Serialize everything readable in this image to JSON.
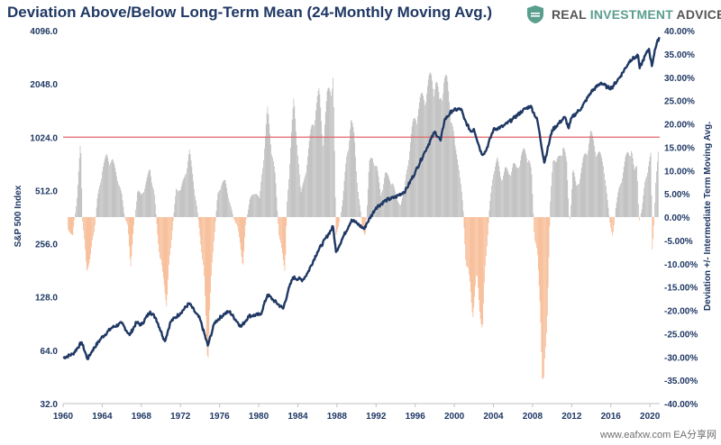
{
  "chart_data": {
    "type": "bar",
    "title": "Deviation Above/Below Long-Term Mean (24-Monthly Moving Avg.)",
    "left_axis": {
      "label": "S&P 500 Index",
      "scale": "log2",
      "ticks": [
        "32.0",
        "64.0",
        "128.0",
        "256.0",
        "512.0",
        "1024.0",
        "2048.0",
        "4096.0"
      ],
      "tick_values": [
        32,
        64,
        128,
        256,
        512,
        1024,
        2048,
        4096
      ],
      "range": [
        32,
        4096
      ]
    },
    "right_axis": {
      "label": "Deviation +/- Intermediate Term Moving Avg.",
      "ticks": [
        "-40.00%",
        "-35.00%",
        "-30.00%",
        "-25.00%",
        "-20.00%",
        "-15.00%",
        "-10.00%",
        "-5.00%",
        "0.00%",
        "5.00%",
        "10.00%",
        "15.00%",
        "20.00%",
        "25.00%",
        "30.00%",
        "35.00%",
        "40.00%"
      ],
      "tick_values": [
        -40,
        -35,
        -30,
        -25,
        -20,
        -15,
        -10,
        -5,
        0,
        5,
        10,
        15,
        20,
        25,
        30,
        35,
        40
      ],
      "range": [
        -40,
        40
      ]
    },
    "x_axis": {
      "ticks": [
        "1960",
        "1964",
        "1968",
        "1972",
        "1976",
        "1980",
        "1984",
        "1988",
        "1992",
        "1996",
        "2000",
        "2004",
        "2008",
        "2012",
        "2016",
        "2020"
      ],
      "tick_values": [
        1960,
        1964,
        1968,
        1972,
        1976,
        1980,
        1984,
        1988,
        1992,
        1996,
        2000,
        2004,
        2008,
        2012,
        2016,
        2020
      ],
      "range": [
        1960,
        2021
      ]
    },
    "threshold_line": {
      "value": 1024,
      "axis": "left",
      "color": "#e06666"
    },
    "series": [
      {
        "type": "line",
        "axis": "left",
        "color": "#1f3864",
        "points": [
          [
            1960.0,
            58
          ],
          [
            1961.0,
            61
          ],
          [
            1961.9,
            71
          ],
          [
            1962.5,
            57
          ],
          [
            1963.0,
            64
          ],
          [
            1963.9,
            75
          ],
          [
            1965.0,
            86
          ],
          [
            1966.0,
            91
          ],
          [
            1966.8,
            78
          ],
          [
            1967.5,
            92
          ],
          [
            1968.0,
            89
          ],
          [
            1968.9,
            106
          ],
          [
            1969.5,
            97
          ],
          [
            1970.4,
            72
          ],
          [
            1971.0,
            93
          ],
          [
            1972.0,
            104
          ],
          [
            1972.9,
            118
          ],
          [
            1973.5,
            105
          ],
          [
            1974.0,
            96
          ],
          [
            1974.8,
            68
          ],
          [
            1975.5,
            92
          ],
          [
            1976.5,
            103
          ],
          [
            1977.0,
            106
          ],
          [
            1978.2,
            87
          ],
          [
            1979.0,
            100
          ],
          [
            1980.2,
            102
          ],
          [
            1980.9,
            132
          ],
          [
            1981.5,
            123
          ],
          [
            1982.5,
            110
          ],
          [
            1983.0,
            138
          ],
          [
            1983.5,
            165
          ],
          [
            1984.5,
            160
          ],
          [
            1985.0,
            175
          ],
          [
            1986.0,
            230
          ],
          [
            1987.6,
            320
          ],
          [
            1987.9,
            230
          ],
          [
            1988.5,
            270
          ],
          [
            1989.5,
            350
          ],
          [
            1990.0,
            335
          ],
          [
            1990.8,
            310
          ],
          [
            1991.0,
            330
          ],
          [
            1992.0,
            410
          ],
          [
            1993.0,
            450
          ],
          [
            1994.0,
            470
          ],
          [
            1995.0,
            510
          ],
          [
            1996.0,
            650
          ],
          [
            1997.0,
            850
          ],
          [
            1998.0,
            1100
          ],
          [
            1998.6,
            980
          ],
          [
            1999.0,
            1280
          ],
          [
            1999.8,
            1450
          ],
          [
            2000.7,
            1480
          ],
          [
            2001.0,
            1300
          ],
          [
            2001.7,
            1100
          ],
          [
            2002.0,
            1140
          ],
          [
            2002.8,
            820
          ],
          [
            2003.2,
            850
          ],
          [
            2004.0,
            1130
          ],
          [
            2005.0,
            1180
          ],
          [
            2006.0,
            1300
          ],
          [
            2007.0,
            1450
          ],
          [
            2007.8,
            1540
          ],
          [
            2008.5,
            1270
          ],
          [
            2009.2,
            735
          ],
          [
            2010.0,
            1120
          ],
          [
            2011.3,
            1330
          ],
          [
            2011.7,
            1150
          ],
          [
            2012.0,
            1320
          ],
          [
            2013.0,
            1500
          ],
          [
            2014.0,
            1850
          ],
          [
            2015.0,
            2080
          ],
          [
            2015.7,
            1950
          ],
          [
            2016.1,
            1950
          ],
          [
            2017.0,
            2270
          ],
          [
            2018.0,
            2800
          ],
          [
            2018.8,
            2950
          ],
          [
            2018.95,
            2510
          ],
          [
            2019.5,
            2950
          ],
          [
            2019.9,
            3230
          ],
          [
            2020.2,
            2580
          ],
          [
            2020.5,
            3200
          ],
          [
            2020.95,
            3760
          ]
        ]
      },
      {
        "type": "bar",
        "axis": "right",
        "positive_color": "#a5a5a5",
        "negative_color": "#f4a16b",
        "points": [
          [
            1960.5,
            -3
          ],
          [
            1961.0,
            -4
          ],
          [
            1961.4,
            4
          ],
          [
            1961.8,
            17
          ],
          [
            1962.0,
            -1
          ],
          [
            1962.4,
            -12
          ],
          [
            1962.8,
            -9
          ],
          [
            1963.2,
            -3
          ],
          [
            1963.5,
            4
          ],
          [
            1964.0,
            11
          ],
          [
            1964.5,
            14
          ],
          [
            1965.0,
            13
          ],
          [
            1965.6,
            9
          ],
          [
            1966.0,
            5
          ],
          [
            1966.3,
            0
          ],
          [
            1966.6,
            -2
          ],
          [
            1966.9,
            -11
          ],
          [
            1967.2,
            -3
          ],
          [
            1967.6,
            6
          ],
          [
            1968.0,
            5
          ],
          [
            1968.5,
            8
          ],
          [
            1968.9,
            11
          ],
          [
            1969.3,
            6
          ],
          [
            1969.6,
            -2
          ],
          [
            1969.9,
            -10
          ],
          [
            1970.3,
            -14
          ],
          [
            1970.6,
            -20
          ],
          [
            1970.9,
            -10
          ],
          [
            1971.2,
            -2
          ],
          [
            1971.6,
            7
          ],
          [
            1972.0,
            6
          ],
          [
            1972.4,
            9
          ],
          [
            1972.9,
            15
          ],
          [
            1973.3,
            9
          ],
          [
            1973.7,
            2
          ],
          [
            1974.0,
            -4
          ],
          [
            1974.4,
            -14
          ],
          [
            1974.8,
            -32
          ],
          [
            1975.0,
            -21
          ],
          [
            1975.4,
            -6
          ],
          [
            1975.8,
            5
          ],
          [
            1976.2,
            8
          ],
          [
            1976.6,
            8
          ],
          [
            1977.0,
            4
          ],
          [
            1977.4,
            0
          ],
          [
            1977.8,
            -2
          ],
          [
            1978.1,
            -6
          ],
          [
            1978.4,
            -11
          ],
          [
            1978.7,
            -1
          ],
          [
            1979.1,
            4
          ],
          [
            1979.6,
            6
          ],
          [
            1980.1,
            4
          ],
          [
            1980.4,
            12
          ],
          [
            1980.9,
            24
          ],
          [
            1981.3,
            17
          ],
          [
            1981.7,
            9
          ],
          [
            1982.1,
            -5
          ],
          [
            1982.4,
            -8
          ],
          [
            1982.7,
            -12
          ],
          [
            1982.9,
            3
          ],
          [
            1983.3,
            18
          ],
          [
            1983.6,
            26
          ],
          [
            1983.9,
            19
          ],
          [
            1984.3,
            5
          ],
          [
            1984.6,
            8
          ],
          [
            1985.0,
            14
          ],
          [
            1985.4,
            20
          ],
          [
            1985.8,
            25
          ],
          [
            1986.2,
            28
          ],
          [
            1986.6,
            18
          ],
          [
            1987.0,
            27
          ],
          [
            1987.3,
            30
          ],
          [
            1987.6,
            33
          ],
          [
            1987.9,
            -4
          ],
          [
            1988.2,
            -2
          ],
          [
            1988.6,
            4
          ],
          [
            1989.0,
            14
          ],
          [
            1989.4,
            22
          ],
          [
            1989.8,
            18
          ],
          [
            1990.2,
            5
          ],
          [
            1990.6,
            -2
          ],
          [
            1990.9,
            -5
          ],
          [
            1991.3,
            12
          ],
          [
            1991.7,
            14
          ],
          [
            1992.1,
            11
          ],
          [
            1992.5,
            5
          ],
          [
            1992.9,
            10
          ],
          [
            1993.3,
            9
          ],
          [
            1993.7,
            8
          ],
          [
            1994.1,
            4
          ],
          [
            1994.5,
            3
          ],
          [
            1994.9,
            6
          ],
          [
            1995.3,
            14
          ],
          [
            1995.7,
            20
          ],
          [
            1996.1,
            24
          ],
          [
            1996.5,
            26
          ],
          [
            1996.9,
            28
          ],
          [
            1997.3,
            30
          ],
          [
            1997.7,
            32
          ],
          [
            1998.1,
            31
          ],
          [
            1998.5,
            26
          ],
          [
            1998.9,
            32
          ],
          [
            1999.3,
            30
          ],
          [
            1999.7,
            24
          ],
          [
            2000.1,
            15
          ],
          [
            2000.5,
            12
          ],
          [
            2000.9,
            2
          ],
          [
            2001.2,
            -11
          ],
          [
            2001.6,
            -15
          ],
          [
            2001.9,
            -22
          ],
          [
            2002.3,
            -14
          ],
          [
            2002.6,
            -21
          ],
          [
            2002.9,
            -25
          ],
          [
            2003.2,
            -11
          ],
          [
            2003.6,
            2
          ],
          [
            2004.0,
            11
          ],
          [
            2004.4,
            13
          ],
          [
            2004.8,
            9
          ],
          [
            2005.2,
            11
          ],
          [
            2005.6,
            10
          ],
          [
            2006.0,
            12
          ],
          [
            2006.4,
            11
          ],
          [
            2006.8,
            14
          ],
          [
            2007.2,
            15
          ],
          [
            2007.6,
            14
          ],
          [
            2007.9,
            10
          ],
          [
            2008.2,
            -5
          ],
          [
            2008.5,
            -9
          ],
          [
            2008.8,
            -20
          ],
          [
            2009.0,
            -36
          ],
          [
            2009.2,
            -40
          ],
          [
            2009.5,
            -22
          ],
          [
            2009.8,
            2
          ],
          [
            2010.1,
            15
          ],
          [
            2010.4,
            12
          ],
          [
            2010.8,
            14
          ],
          [
            2011.1,
            17
          ],
          [
            2011.5,
            12
          ],
          [
            2011.8,
            -2
          ],
          [
            2012.1,
            11
          ],
          [
            2012.5,
            7
          ],
          [
            2012.8,
            9
          ],
          [
            2013.2,
            13
          ],
          [
            2013.6,
            16
          ],
          [
            2013.9,
            19
          ],
          [
            2014.3,
            17
          ],
          [
            2014.6,
            15
          ],
          [
            2014.9,
            14
          ],
          [
            2015.3,
            12
          ],
          [
            2015.6,
            5
          ],
          [
            2015.9,
            -1
          ],
          [
            2016.2,
            -5
          ],
          [
            2016.5,
            2
          ],
          [
            2016.8,
            6
          ],
          [
            2017.2,
            10
          ],
          [
            2017.5,
            13
          ],
          [
            2017.8,
            15
          ],
          [
            2018.1,
            16
          ],
          [
            2018.4,
            10
          ],
          [
            2018.7,
            12
          ],
          [
            2018.9,
            -1
          ],
          [
            2019.2,
            2
          ],
          [
            2019.5,
            8
          ],
          [
            2019.8,
            12
          ],
          [
            2020.1,
            14
          ],
          [
            2020.25,
            -7
          ],
          [
            2020.4,
            -3
          ],
          [
            2020.6,
            10
          ],
          [
            2020.9,
            16
          ]
        ]
      }
    ],
    "grid": false
  },
  "brand": {
    "name_part1": "REAL ",
    "name_part2": "INVESTMENT",
    "name_part3": " ADVICE"
  },
  "watermark": "www.eafxw.com  EA分享网"
}
